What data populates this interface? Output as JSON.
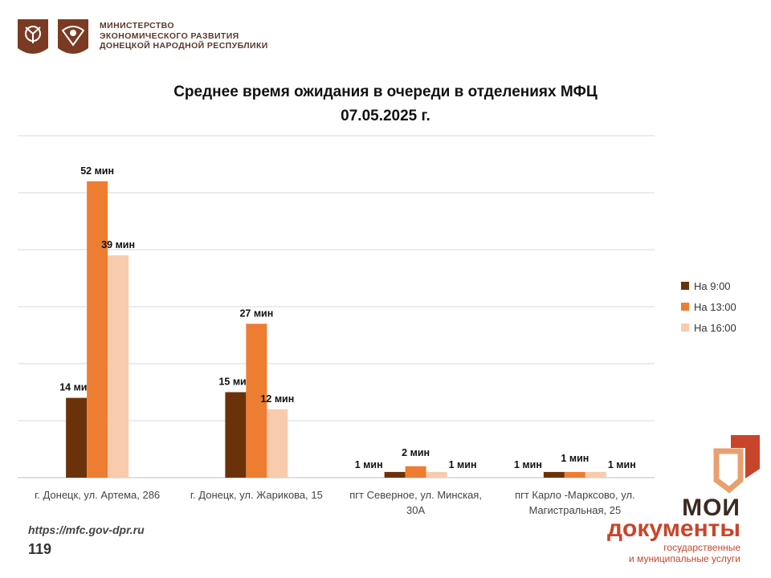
{
  "header": {
    "ministry_lines": [
      "МИНИСТЕРСТВО",
      "ЭКОНОМИЧЕСКОГО РАЗВИТИЯ",
      "ДОНЕЦКОЙ НАРОДНОЙ РЕСПУБЛИКИ"
    ]
  },
  "footer": {
    "url": "https://mfc.gov-dpr.ru",
    "page_number": "119"
  },
  "brand": {
    "name_line1": "МОИ",
    "name_line2": "документы",
    "tagline1": "государственные",
    "tagline2": "и муниципальные услуги"
  },
  "colors": {
    "series_9": "#6b3209",
    "series_13": "#ed7d31",
    "series_16": "#f8cbad",
    "brand_red": "#c8452b",
    "emblem_brown": "#7a3b22"
  },
  "chart_data": {
    "type": "bar",
    "title_line1": "Среднее время ожидания в очереди в отделениях МФЦ",
    "title_line2": "07.05.2025 г.",
    "xlabel": "",
    "ylabel": "",
    "ylim": [
      0,
      60
    ],
    "grid": true,
    "legend_position": "right",
    "categories": [
      [
        "г. Донецк, ул. Артема, 286"
      ],
      [
        "г. Донецк, ул. Жарикова, 15"
      ],
      [
        "пгт Северное, ул. Минская,",
        "30А"
      ],
      [
        "пгт Карло -Марксово, ул.",
        "Магистральная, 25"
      ]
    ],
    "series": [
      {
        "name": "На 9:00",
        "values": [
          14,
          15,
          1,
          1
        ],
        "labels": [
          "14 мин",
          "15 мин",
          "1 мин",
          "1 мин"
        ]
      },
      {
        "name": "На 13:00",
        "values": [
          52,
          27,
          2,
          1
        ],
        "labels": [
          "52 мин",
          "27 мин",
          "2 мин",
          "1 мин"
        ]
      },
      {
        "name": "На 16:00",
        "values": [
          39,
          12,
          1,
          1
        ],
        "labels": [
          "39 мин",
          "12 мин",
          "1 мин",
          "1 мин"
        ]
      }
    ]
  }
}
